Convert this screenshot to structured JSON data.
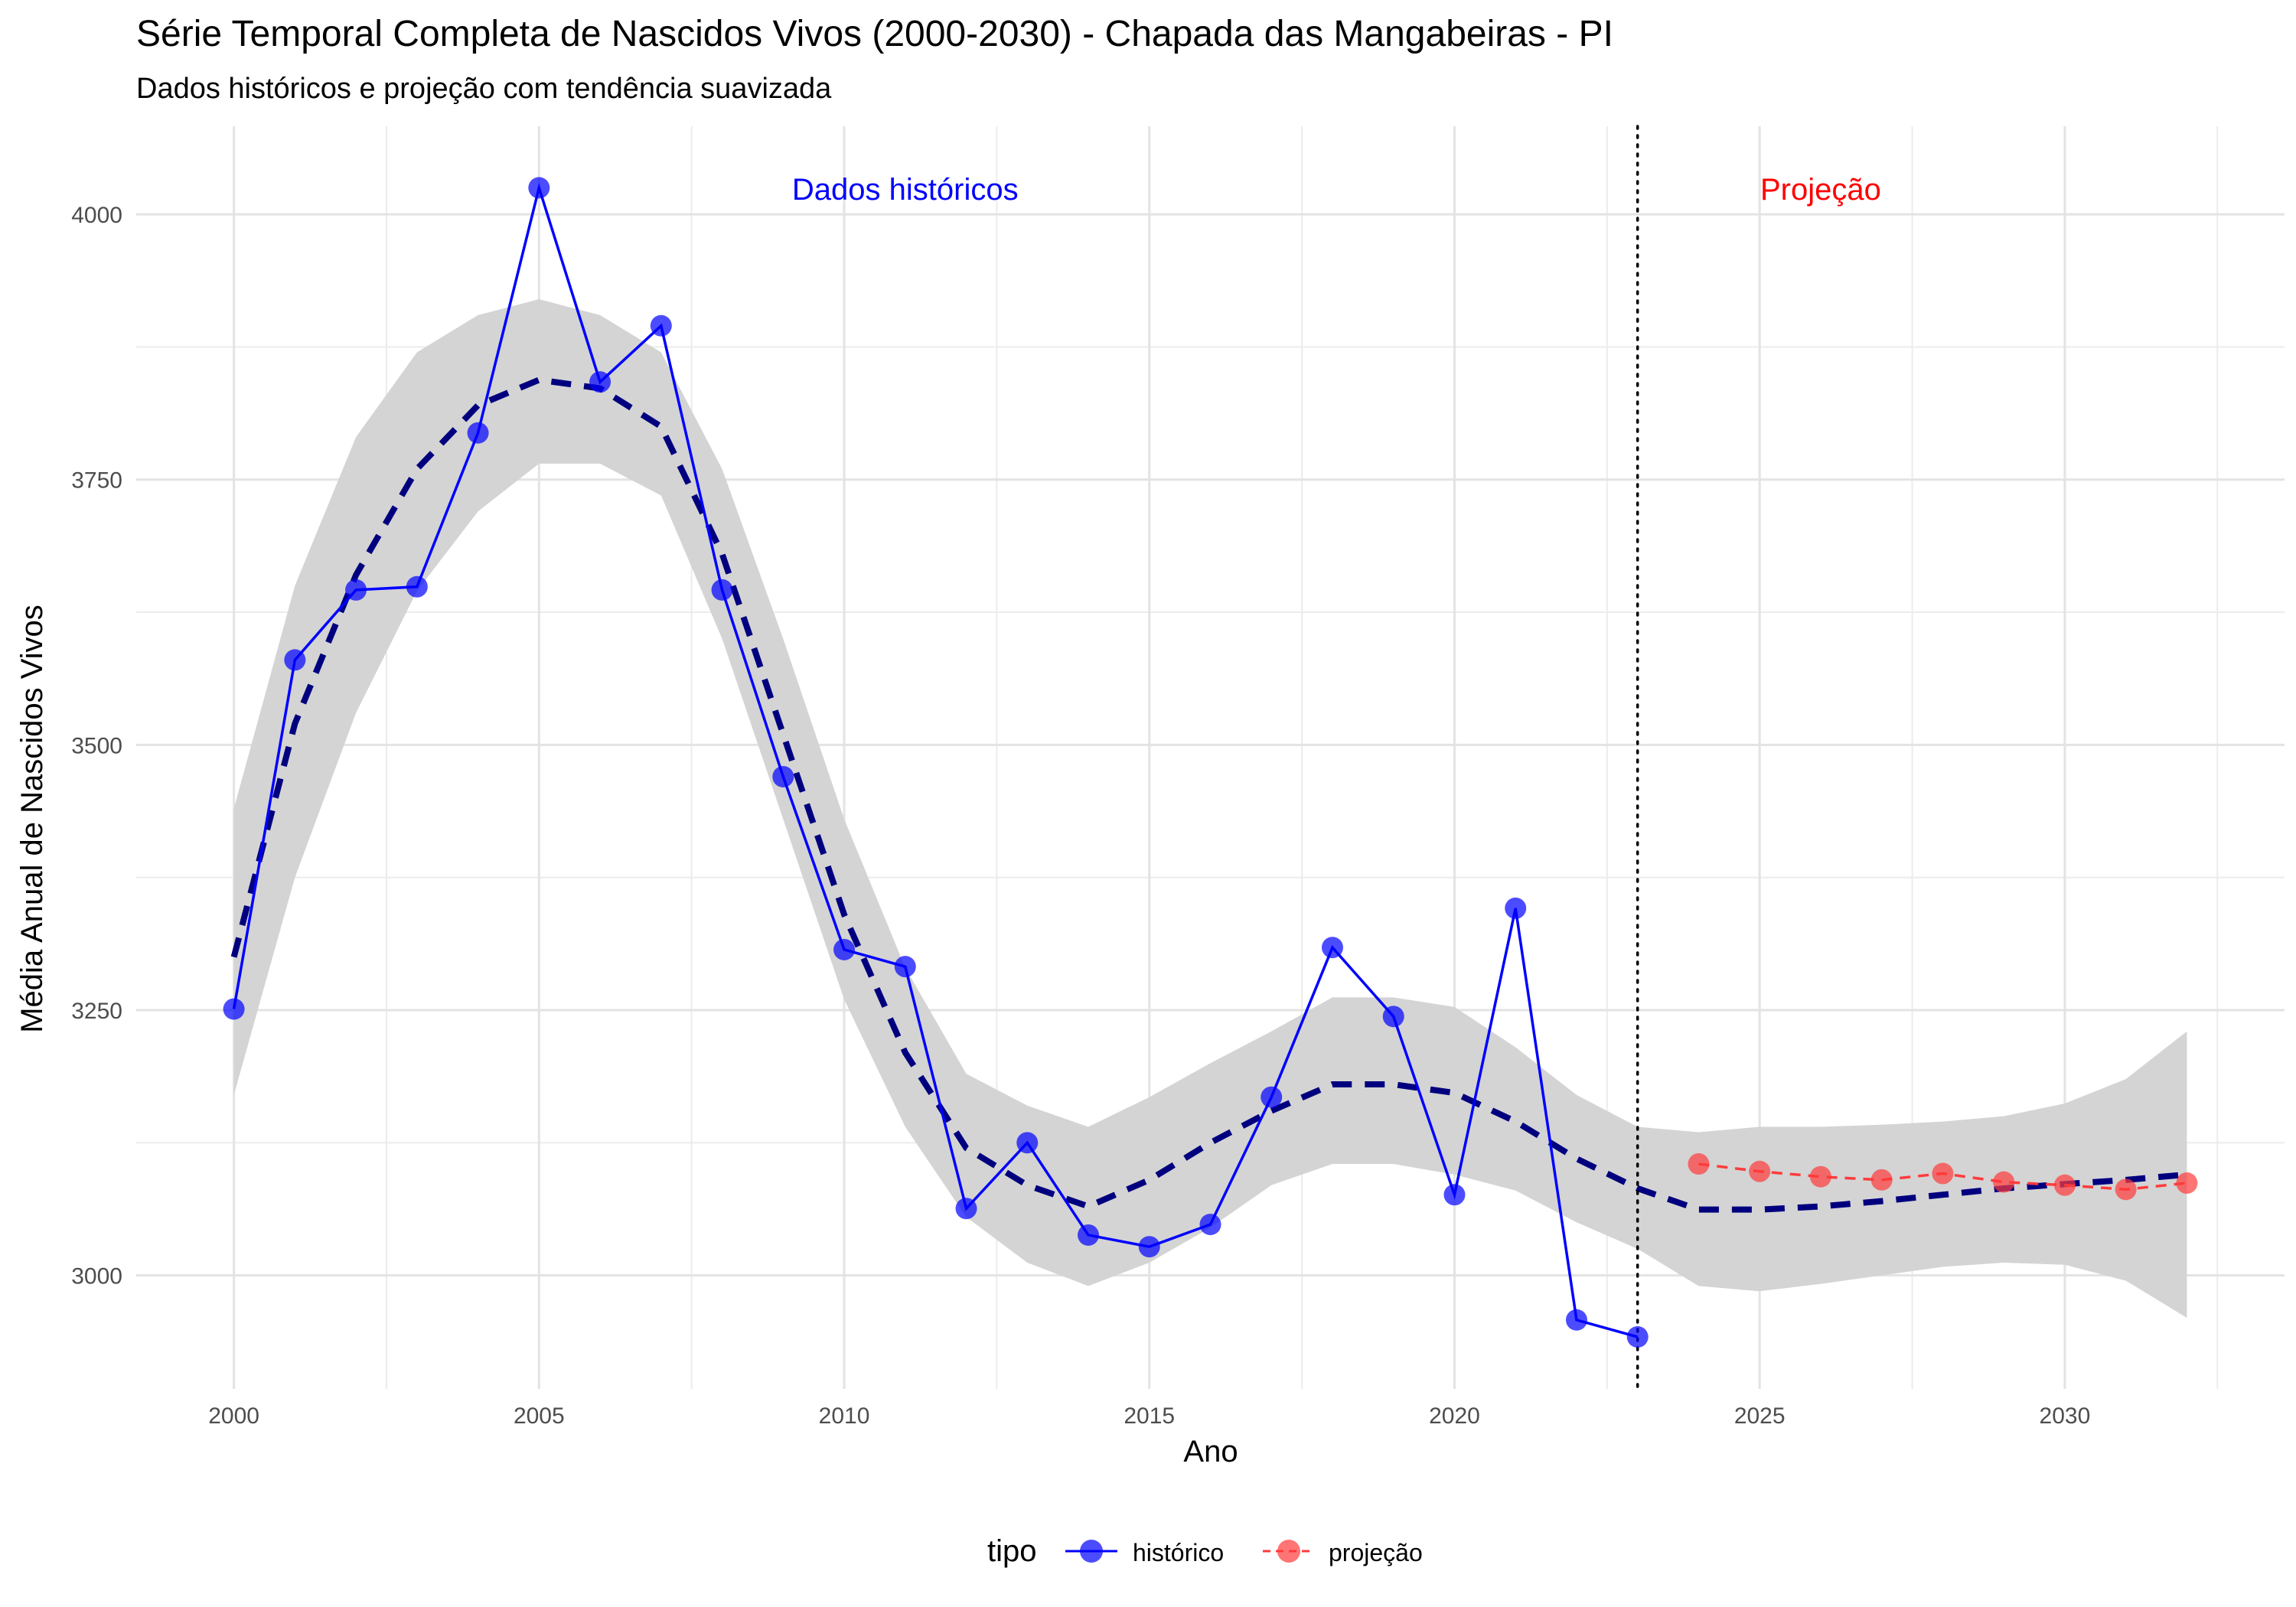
{
  "chart_data": {
    "type": "line",
    "title": "Série Temporal Completa de Nascidos Vivos (2000-2030) -  Chapada das Mangabeiras - PI",
    "subtitle": "Dados históricos e projeção com tendência suavizada",
    "xlabel": "Ano",
    "ylabel": "Média Anual de Nascidos Vivos",
    "xlim": [
      1998.4,
      2033.6
    ],
    "ylim": [
      2893,
      4083
    ],
    "x_ticks": [
      2000,
      2005,
      2010,
      2015,
      2020,
      2025,
      2030
    ],
    "y_ticks": [
      3000,
      3250,
      3500,
      3750,
      4000
    ],
    "grid": true,
    "legend": {
      "title": "tipo",
      "position": "bottom",
      "entries": [
        {
          "label": "histórico",
          "color": "#0000ff"
        },
        {
          "label": "projeção",
          "color": "#ff3b3b"
        }
      ]
    },
    "annotations": [
      {
        "text": "Dados históricos",
        "x": 2011,
        "y": 4024,
        "color": "#0000ff"
      },
      {
        "text": "Projeção",
        "x": 2026,
        "y": 4024,
        "color": "#ff0000"
      }
    ],
    "vline": {
      "x": 2023,
      "style": "dotted",
      "color": "#000000"
    },
    "series": [
      {
        "name": "histórico",
        "color": "#0000ff",
        "x": [
          2000,
          2001,
          2002,
          2003,
          2004,
          2005,
          2006,
          2007,
          2008,
          2009,
          2010,
          2011,
          2012,
          2013,
          2014,
          2015,
          2016,
          2017,
          2018,
          2019,
          2020,
          2021,
          2022,
          2023
        ],
        "values": [
          3251,
          3580,
          3646,
          3649,
          3794,
          4025,
          3842,
          3895,
          3646,
          3470,
          3307,
          3291,
          3063,
          3125,
          3038,
          3027,
          3048,
          3168,
          3309,
          3244,
          3076,
          3346,
          2958,
          2942
        ]
      },
      {
        "name": "projeção",
        "color": "#ff3b3b",
        "x": [
          2024,
          2025,
          2026,
          2027,
          2028,
          2029,
          2030,
          2031,
          2032
        ],
        "values": [
          3105,
          3098,
          3093,
          3090,
          3096,
          3088,
          3085,
          3081,
          3087
        ]
      }
    ],
    "smooth_trend": {
      "color": "#00007f",
      "style": "dashed",
      "x": [
        2000,
        2001,
        2002,
        2003,
        2004,
        2005,
        2006,
        2007,
        2008,
        2009,
        2010,
        2011,
        2012,
        2013,
        2014,
        2015,
        2016,
        2017,
        2018,
        2019,
        2020,
        2021,
        2022,
        2023,
        2024,
        2025,
        2026,
        2027,
        2028,
        2029,
        2030,
        2031,
        2032
      ],
      "values": [
        3300,
        3520,
        3660,
        3760,
        3820,
        3844,
        3836,
        3800,
        3680,
        3510,
        3340,
        3210,
        3120,
        3085,
        3065,
        3090,
        3125,
        3155,
        3180,
        3180,
        3172,
        3145,
        3110,
        3082,
        3062,
        3062,
        3065,
        3070,
        3076,
        3082,
        3086,
        3090,
        3095
      ],
      "ci_lower": [
        3170,
        3375,
        3530,
        3645,
        3720,
        3765,
        3765,
        3735,
        3600,
        3430,
        3260,
        3140,
        3055,
        3012,
        2990,
        3012,
        3045,
        3085,
        3105,
        3105,
        3095,
        3080,
        3050,
        3025,
        2990,
        2985,
        2992,
        3000,
        3008,
        3012,
        3010,
        2995,
        2960
      ],
      "ci_upper": [
        3440,
        3650,
        3790,
        3870,
        3905,
        3920,
        3905,
        3870,
        3760,
        3600,
        3430,
        3290,
        3190,
        3160,
        3140,
        3168,
        3200,
        3230,
        3262,
        3262,
        3253,
        3215,
        3170,
        3140,
        3135,
        3140,
        3140,
        3142,
        3145,
        3150,
        3162,
        3185,
        3230
      ]
    }
  }
}
